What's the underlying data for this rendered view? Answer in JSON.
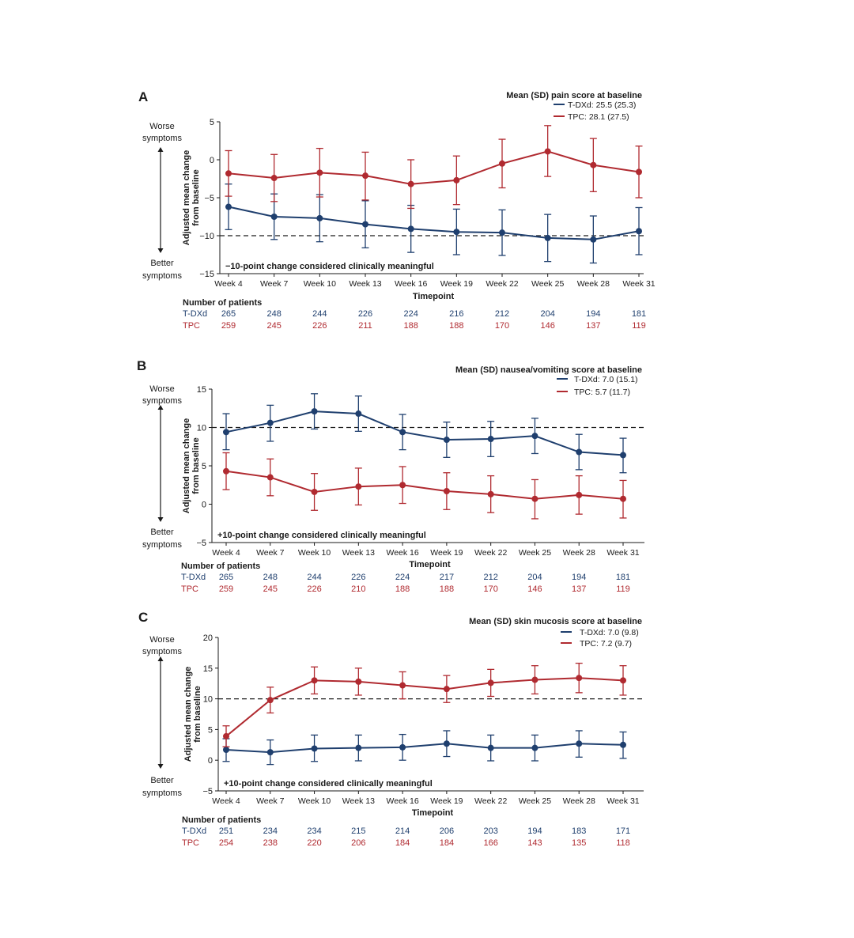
{
  "colors": {
    "tdxd": "#1f3f6e",
    "tpc": "#b02a30",
    "axis": "#1a1a1a"
  },
  "common": {
    "xlabel": "Timepoint",
    "ylabel_line1": "Adjusted mean change",
    "ylabel_line2": "from baseline",
    "worse_line1": "Worse",
    "worse_line2": "symptoms",
    "better_line1": "Better",
    "better_line2": "symptoms",
    "patients_title": "Number of patients",
    "categories": [
      "Week 4",
      "Week 7",
      "Week 10",
      "Week 13",
      "Week 16",
      "Week 19",
      "Week 22",
      "Week 25",
      "Week 28",
      "Week 31"
    ]
  },
  "chart_data": [
    {
      "type": "line",
      "panel_label": "A",
      "legend_title": "Mean (SD) pain score at baseline",
      "ylim": [
        -15,
        5
      ],
      "yticks": [
        "5",
        "0",
        "−5",
        "−10",
        "−15"
      ],
      "threshold": -10,
      "threshold_label": "−10-point change considered clinically meaningful",
      "series": [
        {
          "name": "T-DXd",
          "legend": "T-DXd: 25.5 (25.3)",
          "values": [
            -6.2,
            -7.5,
            -7.7,
            -8.5,
            -9.1,
            -9.5,
            -9.6,
            -10.3,
            -10.5,
            -9.4
          ],
          "lower": [
            -9.2,
            -10.5,
            -10.8,
            -11.6,
            -12.2,
            -12.5,
            -12.6,
            -13.4,
            -13.6,
            -12.5
          ],
          "upper": [
            -3.2,
            -4.5,
            -4.6,
            -5.4,
            -6.0,
            -6.5,
            -6.6,
            -7.2,
            -7.4,
            -6.3
          ],
          "patients": [
            "265",
            "248",
            "244",
            "226",
            "224",
            "216",
            "212",
            "204",
            "194",
            "181"
          ]
        },
        {
          "name": "TPC",
          "legend": "TPC: 28.1 (27.5)",
          "values": [
            -1.8,
            -2.4,
            -1.7,
            -2.1,
            -3.2,
            -2.7,
            -0.5,
            1.1,
            -0.7,
            -1.6
          ],
          "lower": [
            -4.8,
            -5.5,
            -4.9,
            -5.3,
            -6.4,
            -5.9,
            -3.7,
            -2.2,
            -4.2,
            -5.0
          ],
          "upper": [
            1.2,
            0.7,
            1.5,
            1.0,
            0.0,
            0.5,
            2.7,
            4.5,
            2.8,
            1.8
          ],
          "patients": [
            "259",
            "245",
            "226",
            "211",
            "188",
            "188",
            "170",
            "146",
            "137",
            "119"
          ]
        }
      ]
    },
    {
      "type": "line",
      "panel_label": "B",
      "legend_title": "Mean (SD) nausea/vomiting score at baseline",
      "ylim": [
        -5,
        15
      ],
      "yticks": [
        "15",
        "10",
        "5",
        "0",
        "−5"
      ],
      "threshold": 10,
      "threshold_label": "+10-point change considered clinically meaningful",
      "series": [
        {
          "name": "T-DXd",
          "legend": "T-DXd: 7.0 (15.1)",
          "values": [
            9.4,
            10.6,
            12.1,
            11.8,
            9.4,
            8.4,
            8.5,
            8.9,
            6.8,
            6.4
          ],
          "lower": [
            7.1,
            8.2,
            9.8,
            9.5,
            7.1,
            6.1,
            6.2,
            6.6,
            4.5,
            4.1
          ],
          "upper": [
            11.8,
            12.9,
            14.4,
            14.1,
            11.7,
            10.7,
            10.8,
            11.2,
            9.1,
            8.6
          ],
          "patients": [
            "265",
            "248",
            "244",
            "226",
            "224",
            "217",
            "212",
            "204",
            "194",
            "181"
          ]
        },
        {
          "name": "TPC",
          "legend": "TPC: 5.7 (11.7)",
          "values": [
            4.3,
            3.5,
            1.6,
            2.3,
            2.5,
            1.7,
            1.3,
            0.7,
            1.2,
            0.7
          ],
          "lower": [
            1.9,
            1.1,
            -0.8,
            -0.1,
            0.1,
            -0.7,
            -1.1,
            -1.9,
            -1.3,
            -1.8
          ],
          "upper": [
            6.7,
            5.9,
            4.0,
            4.7,
            4.9,
            4.1,
            3.7,
            3.2,
            3.7,
            3.1
          ],
          "patients": [
            "259",
            "245",
            "226",
            "210",
            "188",
            "188",
            "170",
            "146",
            "137",
            "119"
          ]
        }
      ]
    },
    {
      "type": "line",
      "panel_label": "C",
      "legend_title": "Mean (SD) skin mucosis score at baseline",
      "ylim": [
        -5,
        20
      ],
      "yticks": [
        "20",
        "15",
        "10",
        "5",
        "0",
        "−5"
      ],
      "threshold": 10,
      "threshold_label": "+10-point change considered clinically meaningful",
      "series": [
        {
          "name": "T-DXd",
          "legend": "T-DXd: 7.0 (9.8)",
          "values": [
            1.7,
            1.3,
            1.9,
            2.0,
            2.1,
            2.7,
            2.0,
            2.0,
            2.7,
            2.5
          ],
          "lower": [
            -0.2,
            -0.7,
            -0.2,
            -0.1,
            0.0,
            0.6,
            -0.1,
            -0.1,
            0.5,
            0.3
          ],
          "upper": [
            3.5,
            3.3,
            4.1,
            4.1,
            4.2,
            4.8,
            4.1,
            4.1,
            4.8,
            4.6
          ],
          "patients": [
            "251",
            "234",
            "234",
            "215",
            "214",
            "206",
            "203",
            "194",
            "183",
            "171"
          ]
        },
        {
          "name": "TPC",
          "legend": "TPC: 7.2 (9.7)",
          "values": [
            3.9,
            9.8,
            13.0,
            12.8,
            12.2,
            11.6,
            12.6,
            13.1,
            13.4,
            13.0
          ],
          "lower": [
            2.2,
            7.7,
            10.8,
            10.6,
            10.0,
            9.4,
            10.4,
            10.8,
            11.0,
            10.6
          ],
          "upper": [
            5.6,
            11.9,
            15.2,
            15.0,
            14.4,
            13.8,
            14.8,
            15.4,
            15.8,
            15.4
          ],
          "patients": [
            "254",
            "238",
            "220",
            "206",
            "184",
            "184",
            "166",
            "143",
            "135",
            "118"
          ]
        }
      ]
    }
  ]
}
